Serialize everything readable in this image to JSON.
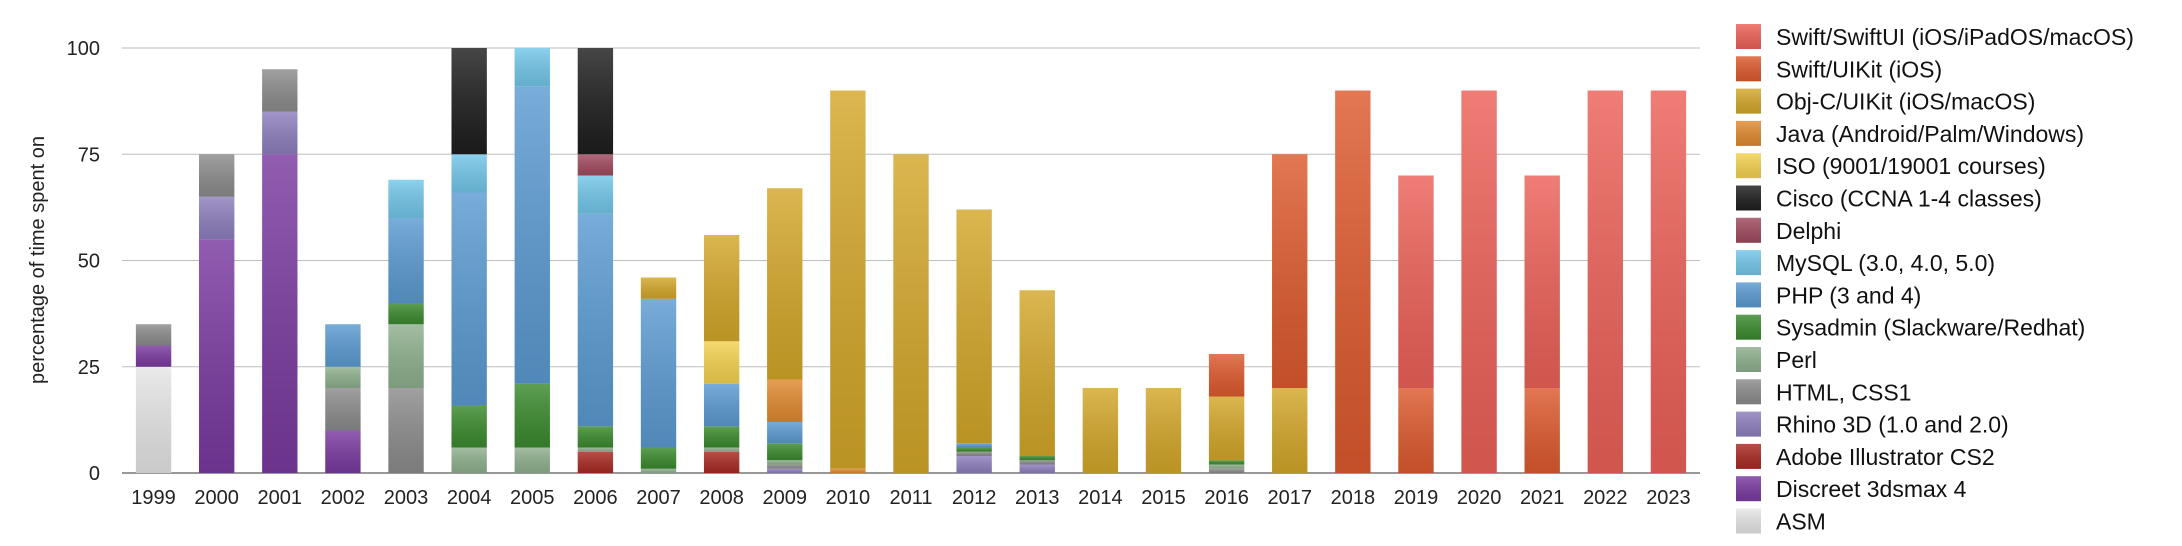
{
  "chart_data": {
    "type": "bar",
    "stacked": true,
    "ylabel": "percentage of time spent on",
    "ylim": [
      0,
      100
    ],
    "yticks": [
      0,
      25,
      50,
      75,
      100
    ],
    "grid": true,
    "legend_position": "right",
    "categories": [
      "1999",
      "2000",
      "2001",
      "2002",
      "2003",
      "2004",
      "2005",
      "2006",
      "2007",
      "2008",
      "2009",
      "2010",
      "2011",
      "2012",
      "2013",
      "2014",
      "2015",
      "2016",
      "2017",
      "2018",
      "2019",
      "2020",
      "2021",
      "2022",
      "2023"
    ],
    "series": [
      {
        "name": "ASM",
        "color": "#e6e6e6",
        "values": [
          25,
          0,
          0,
          0,
          0,
          0,
          0,
          0,
          0,
          0,
          0,
          0,
          0,
          0,
          0,
          0,
          0,
          0,
          0,
          0,
          0,
          0,
          0,
          0,
          0
        ]
      },
      {
        "name": "Discreet 3dsmax 4",
        "color": "#7a3aa0",
        "values": [
          5,
          55,
          75,
          10,
          0,
          0,
          0,
          0,
          0,
          0,
          0,
          0,
          0,
          0,
          0,
          0,
          0,
          0,
          0,
          0,
          0,
          0,
          0,
          0,
          0
        ]
      },
      {
        "name": "Adobe Illustrator CS2",
        "color": "#a82a22",
        "values": [
          0,
          0,
          0,
          0,
          0,
          0,
          0,
          5,
          0,
          5,
          0,
          0,
          0,
          0,
          0,
          0,
          0,
          0,
          0,
          0,
          0,
          0,
          0,
          0,
          0
        ]
      },
      {
        "name": "Rhino 3D (1.0 and 2.0)",
        "color": "#8e7fbd",
        "values": [
          0,
          10,
          10,
          0,
          0,
          0,
          0,
          0,
          0,
          0,
          1,
          0,
          0,
          4,
          2,
          0,
          0,
          0,
          0,
          0,
          0,
          0,
          0,
          0,
          0
        ]
      },
      {
        "name": "HTML, CSS1",
        "color": "#8c8c8c",
        "values": [
          5,
          10,
          10,
          10,
          20,
          0,
          0,
          0,
          0,
          0,
          1,
          0,
          0,
          1,
          1,
          0,
          0,
          1,
          0,
          0,
          0,
          0,
          0,
          0,
          0
        ]
      },
      {
        "name": "Perl",
        "color": "#8fb08e",
        "values": [
          0,
          0,
          0,
          5,
          15,
          6,
          6,
          1,
          1,
          1,
          1,
          0,
          0,
          0,
          0,
          0,
          0,
          1,
          0,
          0,
          0,
          0,
          0,
          0,
          0
        ]
      },
      {
        "name": "Sysadmin (Slackware/Redhat)",
        "color": "#3b8a2e",
        "values": [
          0,
          0,
          0,
          0,
          5,
          10,
          15,
          5,
          5,
          5,
          4,
          0,
          0,
          1,
          1,
          0,
          0,
          1,
          0,
          0,
          0,
          0,
          0,
          0,
          0
        ]
      },
      {
        "name": "PHP (3 and 4)",
        "color": "#5b9bd2",
        "values": [
          0,
          0,
          0,
          10,
          20,
          50,
          70,
          50,
          35,
          10,
          5,
          0,
          0,
          1,
          0,
          0,
          0,
          0,
          0,
          0,
          0,
          0,
          0,
          0,
          0
        ]
      },
      {
        "name": "MySQL (3.0, 4.0, 5.0)",
        "color": "#73c7ea",
        "values": [
          0,
          0,
          0,
          0,
          9,
          9,
          9,
          9,
          0,
          0,
          0,
          0,
          0,
          0,
          0,
          0,
          0,
          0,
          0,
          0,
          0,
          0,
          0,
          0,
          0
        ]
      },
      {
        "name": "Delphi",
        "color": "#a04a5e",
        "values": [
          0,
          0,
          0,
          0,
          0,
          0,
          0,
          5,
          0,
          0,
          0,
          0,
          0,
          0,
          0,
          0,
          0,
          0,
          0,
          0,
          0,
          0,
          0,
          0,
          0
        ]
      },
      {
        "name": "Cisco (CCNA 1-4 classes)",
        "color": "#1e1e1e",
        "values": [
          0,
          0,
          0,
          0,
          0,
          25,
          0,
          25,
          0,
          0,
          0,
          0,
          0,
          0,
          0,
          0,
          0,
          0,
          0,
          0,
          0,
          0,
          0,
          0,
          0
        ]
      },
      {
        "name": "ISO (9001/19001 courses)",
        "color": "#f4d250",
        "values": [
          0,
          0,
          0,
          0,
          0,
          0,
          0,
          0,
          0,
          10,
          0,
          0,
          0,
          0,
          0,
          0,
          0,
          0,
          0,
          0,
          0,
          0,
          0,
          0,
          0
        ]
      },
      {
        "name": "Java (Android/Palm/Windows)",
        "color": "#e08a30",
        "values": [
          0,
          0,
          0,
          0,
          0,
          0,
          0,
          0,
          0,
          0,
          10,
          1,
          0,
          0,
          0,
          0,
          0,
          0,
          0,
          0,
          0,
          0,
          0,
          0,
          0
        ]
      },
      {
        "name": "Obj-C/UIKit (iOS/macOS)",
        "color": "#d4a72a",
        "values": [
          0,
          0,
          0,
          0,
          0,
          0,
          0,
          0,
          5,
          25,
          45,
          89,
          75,
          55,
          39,
          20,
          20,
          15,
          20,
          0,
          0,
          0,
          0,
          0,
          0
        ]
      },
      {
        "name": "Swift/UIKit (iOS)",
        "color": "#dd5a2e",
        "values": [
          0,
          0,
          0,
          0,
          0,
          0,
          0,
          0,
          0,
          0,
          0,
          0,
          0,
          0,
          0,
          0,
          0,
          10,
          55,
          90,
          20,
          0,
          20,
          0,
          0
        ]
      },
      {
        "name": "Swift/SwiftUI (iOS/iPadOS/macOS)",
        "color": "#ec6158",
        "values": [
          0,
          0,
          0,
          0,
          0,
          0,
          0,
          0,
          0,
          0,
          0,
          0,
          0,
          0,
          0,
          0,
          0,
          0,
          0,
          0,
          50,
          90,
          50,
          90,
          90
        ]
      }
    ]
  }
}
